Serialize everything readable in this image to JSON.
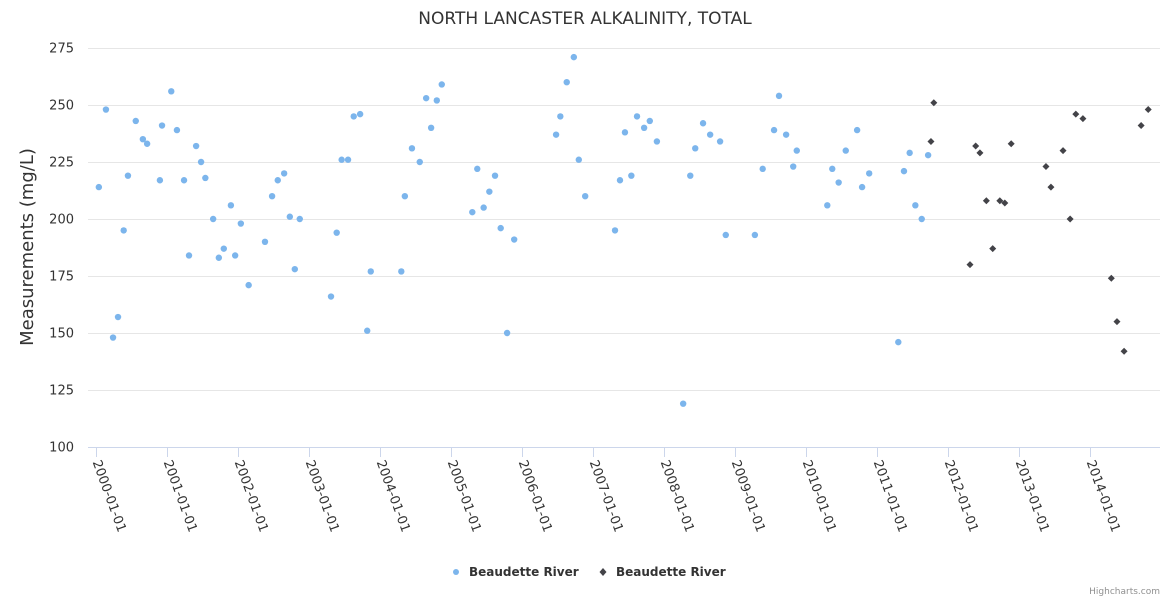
{
  "chart_data": {
    "type": "scatter",
    "title": "NORTH LANCASTER ALKALINITY, TOTAL",
    "xlabel": "",
    "ylabel": "Measurements (mg/L)",
    "ylim": [
      100,
      275
    ],
    "yticks": [
      100,
      125,
      150,
      175,
      200,
      225,
      250,
      275
    ],
    "xlim": [
      "2000-01-01",
      "2014-12-31"
    ],
    "xticks": [
      "2000-01-01",
      "2001-01-01",
      "2002-01-01",
      "2003-01-01",
      "2004-01-01",
      "2005-01-01",
      "2006-01-01",
      "2007-01-01",
      "2008-01-01",
      "2009-01-01",
      "2010-01-01",
      "2011-01-01",
      "2012-01-01",
      "2013-01-01",
      "2014-01-01"
    ],
    "grid": true,
    "legend_position": "bottom-center",
    "credits": "Highcharts.com",
    "series": [
      {
        "name": "Beaudette River",
        "color": "#7cb5ec",
        "marker": "circle",
        "points": [
          [
            2000.04,
            214
          ],
          [
            2000.14,
            248
          ],
          [
            2000.24,
            148
          ],
          [
            2000.31,
            157
          ],
          [
            2000.39,
            195
          ],
          [
            2000.45,
            219
          ],
          [
            2000.56,
            243
          ],
          [
            2000.66,
            235
          ],
          [
            2000.72,
            233
          ],
          [
            2000.9,
            217
          ],
          [
            2000.93,
            241
          ],
          [
            2001.06,
            256
          ],
          [
            2001.14,
            239
          ],
          [
            2001.24,
            217
          ],
          [
            2001.31,
            184
          ],
          [
            2001.41,
            232
          ],
          [
            2001.48,
            225
          ],
          [
            2001.54,
            218
          ],
          [
            2001.65,
            200
          ],
          [
            2001.73,
            183
          ],
          [
            2001.8,
            187
          ],
          [
            2001.9,
            206
          ],
          [
            2001.96,
            184
          ],
          [
            2002.04,
            198
          ],
          [
            2002.15,
            171
          ],
          [
            2002.38,
            190
          ],
          [
            2002.48,
            210
          ],
          [
            2002.56,
            217
          ],
          [
            2002.65,
            220
          ],
          [
            2002.73,
            201
          ],
          [
            2002.8,
            178
          ],
          [
            2002.87,
            200
          ],
          [
            2003.31,
            166
          ],
          [
            2003.39,
            194
          ],
          [
            2003.46,
            226
          ],
          [
            2003.55,
            226
          ],
          [
            2003.63,
            245
          ],
          [
            2003.72,
            246
          ],
          [
            2003.82,
            151
          ],
          [
            2003.87,
            177
          ],
          [
            2004.3,
            177
          ],
          [
            2004.35,
            210
          ],
          [
            2004.45,
            231
          ],
          [
            2004.56,
            225
          ],
          [
            2004.65,
            253
          ],
          [
            2004.72,
            240
          ],
          [
            2004.8,
            252
          ],
          [
            2004.87,
            259
          ],
          [
            2005.3,
            203
          ],
          [
            2005.37,
            222
          ],
          [
            2005.46,
            205
          ],
          [
            2005.54,
            212
          ],
          [
            2005.62,
            219
          ],
          [
            2005.7,
            196
          ],
          [
            2005.79,
            150
          ],
          [
            2005.89,
            191
          ],
          [
            2006.48,
            237
          ],
          [
            2006.54,
            245
          ],
          [
            2006.63,
            260
          ],
          [
            2006.73,
            271
          ],
          [
            2006.8,
            226
          ],
          [
            2006.89,
            210
          ],
          [
            2007.31,
            195
          ],
          [
            2007.38,
            217
          ],
          [
            2007.45,
            238
          ],
          [
            2007.54,
            219
          ],
          [
            2007.62,
            245
          ],
          [
            2007.72,
            240
          ],
          [
            2007.8,
            243
          ],
          [
            2007.9,
            234
          ],
          [
            2008.27,
            119
          ],
          [
            2008.37,
            219
          ],
          [
            2008.44,
            231
          ],
          [
            2008.55,
            242
          ],
          [
            2008.65,
            237
          ],
          [
            2008.79,
            234
          ],
          [
            2008.87,
            193
          ],
          [
            2009.28,
            193
          ],
          [
            2009.39,
            222
          ],
          [
            2009.55,
            239
          ],
          [
            2009.62,
            254
          ],
          [
            2009.72,
            237
          ],
          [
            2009.82,
            223
          ],
          [
            2009.87,
            230
          ],
          [
            2010.3,
            206
          ],
          [
            2010.37,
            222
          ],
          [
            2010.46,
            216
          ],
          [
            2010.56,
            230
          ],
          [
            2010.72,
            239
          ],
          [
            2010.79,
            214
          ],
          [
            2010.89,
            220
          ],
          [
            2011.3,
            146
          ],
          [
            2011.38,
            221
          ],
          [
            2011.46,
            229
          ],
          [
            2011.54,
            206
          ],
          [
            2011.63,
            200
          ],
          [
            2011.72,
            228
          ]
        ]
      },
      {
        "name": "Beaudette River",
        "color": "#434348",
        "marker": "diamond",
        "points": [
          [
            2011.8,
            251
          ],
          [
            2011.76,
            234
          ],
          [
            2012.31,
            180
          ],
          [
            2012.39,
            232
          ],
          [
            2012.45,
            229
          ],
          [
            2012.54,
            208
          ],
          [
            2012.63,
            187
          ],
          [
            2012.73,
            208
          ],
          [
            2012.8,
            207
          ],
          [
            2012.89,
            233
          ],
          [
            2013.38,
            223
          ],
          [
            2013.45,
            214
          ],
          [
            2013.62,
            230
          ],
          [
            2013.72,
            200
          ],
          [
            2013.8,
            246
          ],
          [
            2013.9,
            244
          ],
          [
            2014.3,
            174
          ],
          [
            2014.38,
            155
          ],
          [
            2014.48,
            142
          ],
          [
            2014.72,
            241
          ],
          [
            2014.82,
            248
          ]
        ]
      }
    ]
  }
}
